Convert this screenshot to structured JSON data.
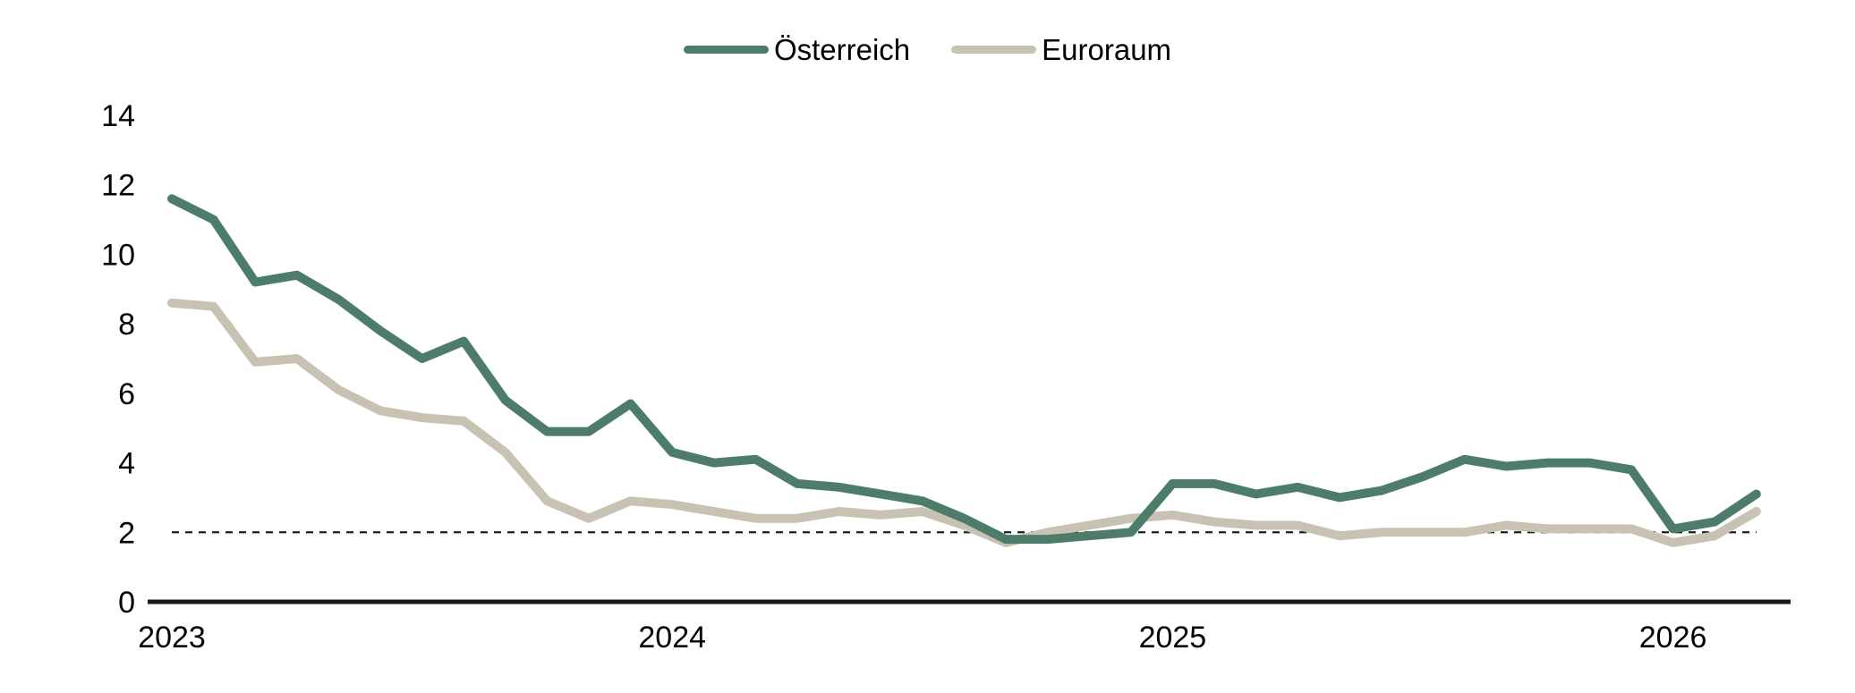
{
  "legend": {
    "position": "top-center",
    "items": [
      {
        "label": "Österreich"
      },
      {
        "label": "Euroraum"
      }
    ]
  },
  "chart_data": {
    "type": "line",
    "x_unit": "month",
    "x": [
      "2023-01",
      "2023-02",
      "2023-03",
      "2023-04",
      "2023-05",
      "2023-06",
      "2023-07",
      "2023-08",
      "2023-09",
      "2023-10",
      "2023-11",
      "2023-12",
      "2024-01",
      "2024-02",
      "2024-03",
      "2024-04",
      "2024-05",
      "2024-06",
      "2024-07",
      "2024-08",
      "2024-09",
      "2024-10",
      "2024-11",
      "2024-12",
      "2025-01",
      "2025-02",
      "2025-03",
      "2025-04",
      "2025-05",
      "2025-06",
      "2025-07",
      "2025-08",
      "2025-09",
      "2025-10",
      "2025-11",
      "2025-12",
      "2026-01",
      "2026-02",
      "2026-03"
    ],
    "series": [
      {
        "name": "Österreich",
        "color": "#4e7c6b",
        "values": [
          11.6,
          11.0,
          9.2,
          9.4,
          8.7,
          7.8,
          7.0,
          7.5,
          5.8,
          4.9,
          4.9,
          5.7,
          4.3,
          4.0,
          4.1,
          3.4,
          3.3,
          3.1,
          2.9,
          2.4,
          1.8,
          1.8,
          1.9,
          2.0,
          3.4,
          3.4,
          3.1,
          3.3,
          3.0,
          3.2,
          3.6,
          4.1,
          3.9,
          4.0,
          4.0,
          3.8,
          2.1,
          2.3,
          3.1
        ]
      },
      {
        "name": "Euroraum",
        "color": "#c8c2b2",
        "values": [
          8.6,
          8.5,
          6.9,
          7.0,
          6.1,
          5.5,
          5.3,
          5.2,
          4.3,
          2.9,
          2.4,
          2.9,
          2.8,
          2.6,
          2.4,
          2.4,
          2.6,
          2.5,
          2.6,
          2.2,
          1.7,
          2.0,
          2.2,
          2.4,
          2.5,
          2.3,
          2.2,
          2.2,
          1.9,
          2.0,
          2.0,
          2.0,
          2.2,
          2.1,
          2.1,
          2.1,
          1.7,
          1.9,
          2.6
        ]
      }
    ],
    "ylim": [
      0,
      14
    ],
    "y_ticks": [
      0,
      2,
      4,
      6,
      8,
      10,
      12,
      14
    ],
    "x_tick_labels": [
      "2023",
      "2024",
      "2025",
      "2026"
    ],
    "x_tick_month_indices": [
      0,
      12,
      24,
      36
    ],
    "reference_line": {
      "value": 2,
      "style": "dashed",
      "color": "#1c1c1c"
    },
    "grid": false,
    "legend_position": "top-center",
    "axis_color": "#1a1a1a",
    "text_color": "#000000"
  }
}
